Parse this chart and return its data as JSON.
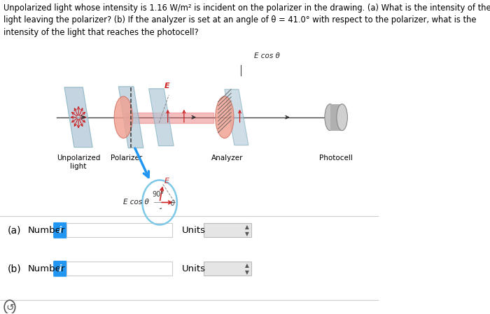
{
  "title_text": "Unpolarized light whose intensity is 1.16 W/m² is incident on the polarizer in the drawing. (a) What is the intensity of the\nlight leaving the polarizer? (b) If the analyzer is set at an angle of θ = 41.0° with respect to the polarizer, what is the\nintensity of the light that reaches the photocell?",
  "label_unpolarized": "Unpolarized\nlight",
  "label_polarizer": "Polarizer",
  "label_analyzer": "Analyzer",
  "label_photocell": "Photocell",
  "label_E_cos_top": "E cos θ",
  "label_E": "E",
  "label_90": "90°",
  "label_theta": "θ",
  "label_E_cos_bottom": "E cos θ",
  "label_a": "(a)",
  "label_b": "(b)",
  "label_number": "Number",
  "label_units": "Units",
  "bg_color": "#ffffff",
  "text_color": "#000000",
  "panel_color": "#b0c8d8",
  "ellipse_color": "#f0a090",
  "beam_color": "#d9534f",
  "info_box_color": "#2196F3",
  "photocell_color": "#aaaaaa",
  "circle_color": "#7ec8e8",
  "red_arrow": "#cc2222",
  "dark_gray": "#333333"
}
